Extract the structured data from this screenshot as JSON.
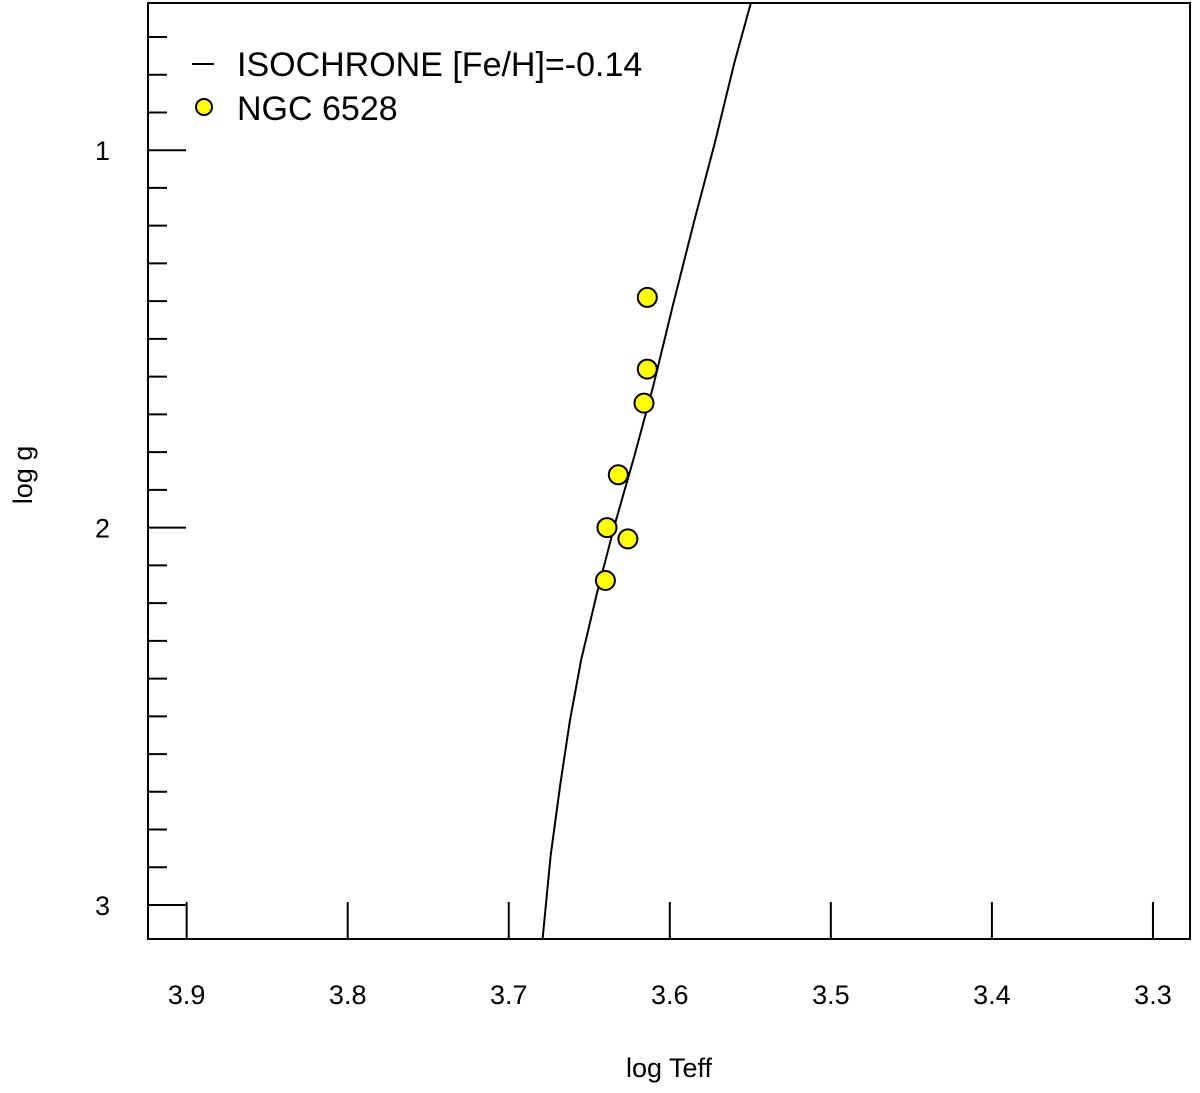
{
  "chart_data": {
    "type": "scatter",
    "xlabel": "log Teff",
    "ylabel": "log g",
    "xlim": [
      3.924,
      3.277
    ],
    "ylim": [
      0.61,
      3.09
    ],
    "x_reversed": true,
    "y_reversed": true,
    "grid": false,
    "legend_position": "top-left",
    "x_ticks": [
      3.9,
      3.8,
      3.7,
      3.6,
      3.5,
      3.4,
      3.3
    ],
    "x_tick_labels": [
      "3.9",
      "3.8",
      "3.7",
      "3.6",
      "3.5",
      "3.4",
      "3.3"
    ],
    "y_major_ticks": [
      1,
      2,
      3
    ],
    "y_tick_labels": [
      "1",
      "2",
      "3"
    ],
    "y_minor_ticks": [
      0.7,
      0.8,
      0.9,
      1.1,
      1.2,
      1.3,
      1.4,
      1.5,
      1.6,
      1.7,
      1.8,
      1.9,
      2.1,
      2.2,
      2.3,
      2.4,
      2.5,
      2.6,
      2.7,
      2.8,
      2.9
    ],
    "series": [
      {
        "name": "ISOCHRONE [Fe/H]=-0.14",
        "kind": "line",
        "color": "#000000",
        "x": [
          3.549,
          3.56,
          3.572,
          3.585,
          3.598,
          3.61,
          3.622,
          3.634,
          3.645,
          3.655,
          3.662,
          3.668,
          3.674,
          3.679
        ],
        "y": [
          0.6,
          0.77,
          0.98,
          1.19,
          1.41,
          1.62,
          1.81,
          1.99,
          2.17,
          2.35,
          2.51,
          2.68,
          2.87,
          3.09
        ]
      },
      {
        "name": "NGC 6528",
        "kind": "scatter",
        "color": "#ffff00",
        "edge_color": "#000000",
        "x": [
          3.614,
          3.614,
          3.616,
          3.632,
          3.639,
          3.626,
          3.64
        ],
        "y": [
          1.39,
          1.58,
          1.67,
          1.86,
          2.0,
          2.03,
          2.14
        ]
      }
    ]
  }
}
